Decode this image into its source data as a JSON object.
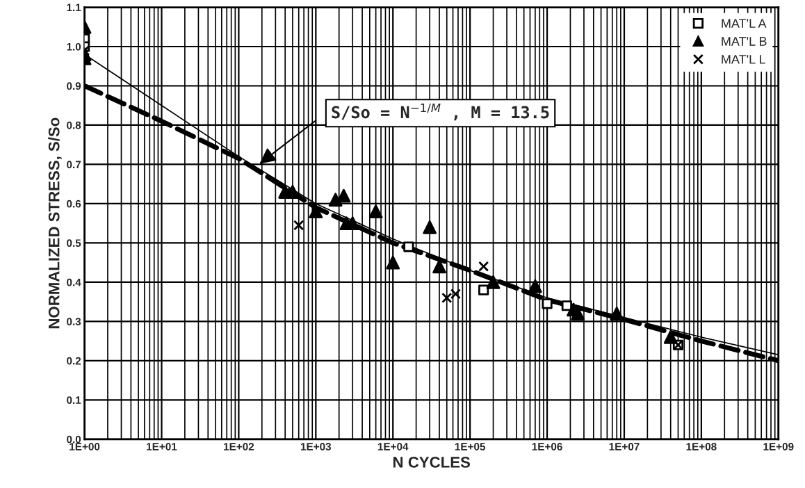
{
  "chart_data": {
    "type": "scatter",
    "xlabel": "N CYCLES",
    "ylabel": "NORMALIZED STRESS, S/So",
    "log": "x",
    "grid": true,
    "legend": "top right",
    "xlim": [
      1,
      1000000000
    ],
    "ylim": [
      0,
      1.1
    ],
    "xticks": [
      {
        "value": 1,
        "label": "1E+00"
      },
      {
        "value": 10,
        "label": "1E+01"
      },
      {
        "value": 100,
        "label": "1E+02"
      },
      {
        "value": 1000,
        "label": "1E+03"
      },
      {
        "value": 10000,
        "label": "1E+04"
      },
      {
        "value": 100000,
        "label": "1E+05"
      },
      {
        "value": 1000000,
        "label": "1E+06"
      },
      {
        "value": 10000000,
        "label": "1E+07"
      },
      {
        "value": 100000000,
        "label": "1E+08"
      },
      {
        "value": 1000000000,
        "label": "1E+09"
      }
    ],
    "yticks": [
      {
        "value": 0,
        "label": "0.0"
      },
      {
        "value": 0.1,
        "label": "0.1"
      },
      {
        "value": 0.2,
        "label": "0.2"
      },
      {
        "value": 0.3,
        "label": "0.3"
      },
      {
        "value": 0.4,
        "label": "0.4"
      },
      {
        "value": 0.5,
        "label": "0.5"
      },
      {
        "value": 0.6,
        "label": "0.6"
      },
      {
        "value": 0.7,
        "label": "0.7"
      },
      {
        "value": 0.8,
        "label": "0.8"
      },
      {
        "value": 0.9,
        "label": "0.9"
      },
      {
        "value": 1.0,
        "label": "1.0"
      },
      {
        "value": 1.1,
        "label": "1.1"
      }
    ],
    "annotations": [
      "S/So = N$^{−1/M}$ , M = 13.5"
    ],
    "series": [
      {
        "type": "line",
        "color": "#000000",
        "line_style": "solid",
        "marker": "none",
        "x": [
          1,
          10,
          100,
          1000,
          10000,
          100000,
          1000000,
          10000000,
          100000000,
          1000000000
        ],
        "values": [
          0.98,
          0.85,
          0.72,
          0.6,
          0.51,
          0.43,
          0.36,
          0.31,
          0.26,
          0.215
        ]
      },
      {
        "type": "line",
        "color": "#000000",
        "line_style": "dashed",
        "marker": "none",
        "x": [
          1,
          10,
          100,
          1000,
          10000,
          100000,
          1000000,
          10000000,
          100000000,
          1000000000
        ],
        "values": [
          0.9,
          0.81,
          0.715,
          0.59,
          0.5,
          0.43,
          0.355,
          0.305,
          0.25,
          0.2
        ]
      },
      {
        "name": "MAT'L A",
        "color": "#000000",
        "marker": "square",
        "x": [
          1,
          1,
          16000,
          150000,
          1000000,
          1800000,
          50000000
        ],
        "values": [
          1.02,
          1.0,
          0.49,
          0.38,
          0.345,
          0.34,
          0.24
        ]
      },
      {
        "name": "MAT'L B",
        "color": "#000000",
        "marker": "triangle",
        "x": [
          1,
          1,
          1,
          400,
          500,
          1000,
          1800,
          2300,
          2500,
          3000,
          6000,
          10000,
          30000,
          40000,
          200000,
          700000,
          2200000,
          2500000,
          8000000,
          40000000
        ],
        "values": [
          1.05,
          0.97,
          0.98,
          0.63,
          0.63,
          0.58,
          0.61,
          0.62,
          0.55,
          0.55,
          0.58,
          0.45,
          0.54,
          0.44,
          0.4,
          0.39,
          0.33,
          0.32,
          0.32,
          0.26
        ]
      },
      {
        "name": "MAT'L L",
        "color": "#000000",
        "marker": "cross",
        "x": [
          1,
          600,
          50000,
          65000,
          150000,
          50000000
        ],
        "values": [
          0.99,
          0.545,
          0.36,
          0.37,
          0.44,
          0.24
        ]
      }
    ]
  }
}
